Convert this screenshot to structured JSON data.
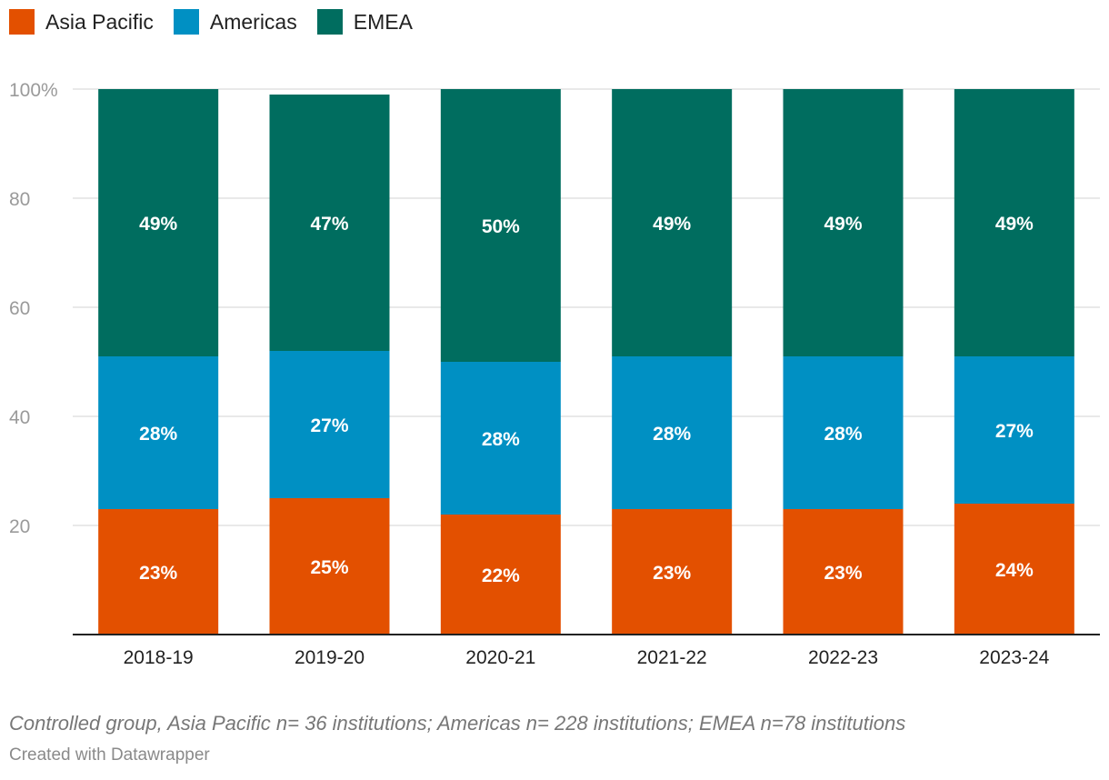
{
  "legend": [
    {
      "label": "Asia Pacific",
      "color": "#E35000"
    },
    {
      "label": "Americas",
      "color": "#0090C3"
    },
    {
      "label": "EMEA",
      "color": "#006D5F"
    }
  ],
  "chart_data": {
    "type": "bar",
    "stacked": true,
    "categories": [
      "2018-19",
      "2019-20",
      "2020-21",
      "2021-22",
      "2022-23",
      "2023-24"
    ],
    "series": [
      {
        "name": "Asia Pacific",
        "color": "#E35000",
        "values": [
          23,
          25,
          22,
          23,
          23,
          24
        ],
        "labels": [
          "23%",
          "25%",
          "22%",
          "23%",
          "23%",
          "24%"
        ]
      },
      {
        "name": "Americas",
        "color": "#0090C3",
        "values": [
          28,
          27,
          28,
          28,
          28,
          27
        ],
        "labels": [
          "28%",
          "27%",
          "28%",
          "28%",
          "28%",
          "27%"
        ]
      },
      {
        "name": "EMEA",
        "color": "#006D5F",
        "values": [
          49,
          47,
          50,
          49,
          49,
          49
        ],
        "labels": [
          "49%",
          "47%",
          "50%",
          "49%",
          "49%",
          "49%"
        ]
      }
    ],
    "ylim": [
      0,
      100
    ],
    "yticks": [
      20,
      40,
      60,
      80,
      100
    ],
    "ytick_labels": [
      "20",
      "40",
      "60",
      "80",
      "100%"
    ],
    "grid": true,
    "legend_position": "top-left"
  },
  "footnote": "Controlled group, Asia Pacific n= 36 institutions; Americas n= 228 institutions; EMEA n=78 institutions",
  "credit": "Created with Datawrapper"
}
